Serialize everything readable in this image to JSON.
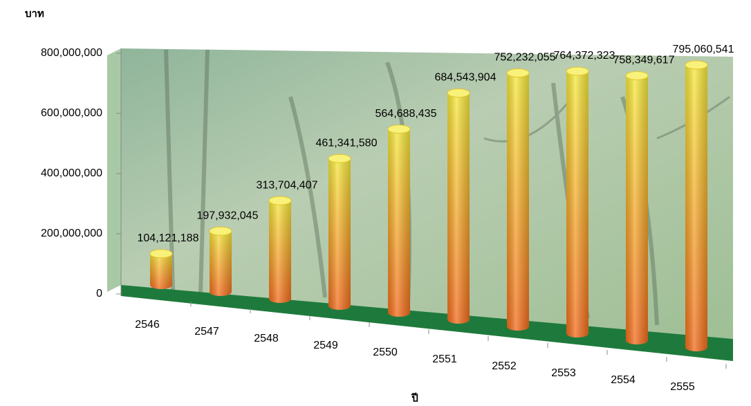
{
  "chart_data": {
    "type": "bar",
    "y_label": "บาท",
    "x_label": "ปี",
    "categories": [
      "2546",
      "2547",
      "2548",
      "2549",
      "2550",
      "2551",
      "2552",
      "2553",
      "2554",
      "2555"
    ],
    "values": [
      104121188,
      197932045,
      313704407,
      461341580,
      564688435,
      684543904,
      752232055,
      764372323,
      758349617,
      795060541
    ],
    "value_labels": [
      "104,121,188",
      "197,932,045",
      "313,704,407",
      "461,341,580",
      "564,688,435",
      "684,543,904",
      "752,232,055",
      "764,372,323",
      "758,349,617",
      "795,060,541"
    ],
    "color": "#f7941d",
    "ylim": [
      0,
      800000000
    ],
    "yticks": [
      0,
      {
        "value": 200000000,
        "label": "200,000,000"
      },
      {
        "value": 400000000,
        "label": "400,000,000"
      },
      {
        "value": 600000000,
        "label": "600,000,000"
      },
      {
        "value": 800000000,
        "label": "800,000,000"
      }
    ],
    "grid": false
  }
}
